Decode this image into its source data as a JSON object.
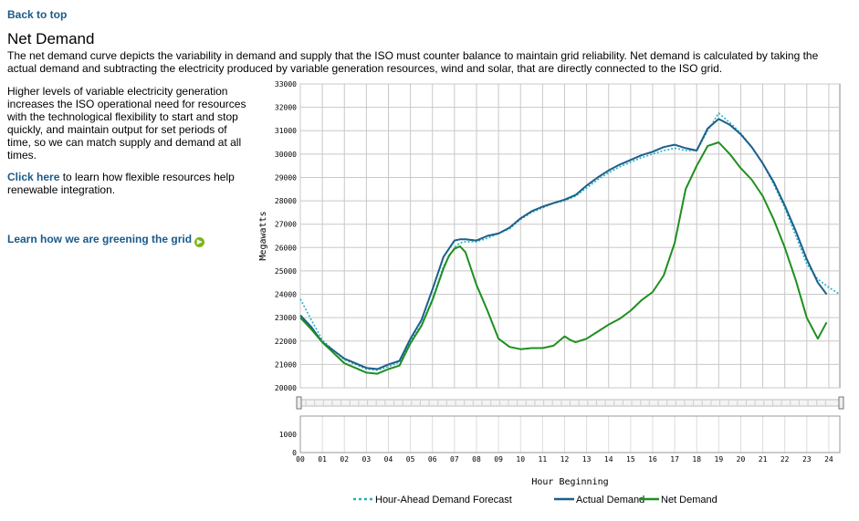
{
  "nav": {
    "back_to_top": "Back to top"
  },
  "page": {
    "title": "Net Demand",
    "intro": "The net demand curve depicts the variability in demand and supply that the ISO must counter balance to maintain grid reliability. Net demand is calculated by taking the actual demand and subtracting the electricity produced by variable generation resources, wind and solar, that are directly connected to the ISO grid.",
    "paragraph": "Higher levels of variable electricity generation increases the ISO operational need for resources with the technological flexibility to start and stop quickly, and maintain output for set periods of time, so we can match supply and demand at all times.",
    "click_here_link": "Click here",
    "click_here_rest": " to learn how flexible resources help renewable integration.",
    "greening_link": "Learn how we are greening the grid",
    "greening_icon": "arrow-right-circle-icon"
  },
  "chart_data": {
    "type": "line",
    "xlabel": "Hour Beginning",
    "ylabel": "Megawatts",
    "xlim": [
      0,
      24.5
    ],
    "ylim": [
      20000,
      33000
    ],
    "x_ticks": [
      "00",
      "01",
      "02",
      "03",
      "04",
      "05",
      "06",
      "07",
      "08",
      "09",
      "10",
      "11",
      "12",
      "13",
      "14",
      "15",
      "16",
      "17",
      "18",
      "19",
      "20",
      "21",
      "22",
      "23",
      "24"
    ],
    "y_ticks": [
      20000,
      21000,
      22000,
      23000,
      24000,
      25000,
      26000,
      27000,
      28000,
      29000,
      30000,
      31000,
      32000,
      33000
    ],
    "navigator_tick": 1000,
    "legend_position": "bottom-center",
    "colors": {
      "forecast": "#2ab0c0",
      "actual": "#1b5f8c",
      "net": "#1f8f1f"
    },
    "series": [
      {
        "name": "Hour-Ahead Demand Forecast",
        "style": "dotted",
        "x": [
          0,
          0.5,
          1,
          1.5,
          2,
          2.5,
          3,
          3.5,
          4,
          4.5,
          5,
          5.5,
          6,
          6.5,
          7,
          7.25,
          7.5,
          8,
          8.5,
          9,
          9.5,
          10,
          10.5,
          11,
          11.5,
          12,
          12.5,
          13,
          13.5,
          14,
          14.5,
          15,
          15.5,
          16,
          16.5,
          17,
          17.5,
          18,
          18.5,
          19,
          19.5,
          20,
          20.5,
          21,
          21.5,
          22,
          22.5,
          23,
          23.5,
          24,
          24.5
        ],
        "values": [
          23800,
          22900,
          22050,
          21600,
          21200,
          21000,
          20800,
          20750,
          20900,
          21100,
          22000,
          22700,
          23800,
          25200,
          26000,
          26200,
          26250,
          26250,
          26400,
          26600,
          26800,
          27200,
          27500,
          27700,
          27900,
          28000,
          28200,
          28550,
          28900,
          29200,
          29450,
          29650,
          29850,
          30000,
          30150,
          30250,
          30150,
          30150,
          31000,
          31750,
          31350,
          30900,
          30300,
          29600,
          28700,
          27700,
          26500,
          25300,
          24650,
          24300,
          24000
        ]
      },
      {
        "name": "Actual Demand",
        "style": "solid",
        "x": [
          0,
          0.5,
          1,
          1.5,
          2,
          2.5,
          3,
          3.5,
          4,
          4.5,
          5,
          5.5,
          6,
          6.5,
          7,
          7.25,
          7.5,
          8,
          8.5,
          9,
          9.5,
          10,
          10.5,
          11,
          11.5,
          12,
          12.5,
          13,
          13.5,
          14,
          14.5,
          15,
          15.5,
          16,
          16.5,
          17,
          17.5,
          18,
          18.5,
          19,
          19.5,
          20,
          20.5,
          21,
          21.5,
          22,
          22.5,
          23,
          23.5,
          23.9
        ],
        "values": [
          23100,
          22600,
          21950,
          21600,
          21250,
          21050,
          20850,
          20800,
          21000,
          21150,
          22100,
          22900,
          24200,
          25600,
          26300,
          26350,
          26350,
          26300,
          26500,
          26600,
          26850,
          27250,
          27550,
          27750,
          27900,
          28050,
          28250,
          28650,
          29000,
          29300,
          29550,
          29750,
          29950,
          30100,
          30300,
          30400,
          30250,
          30150,
          31100,
          31500,
          31250,
          30850,
          30300,
          29600,
          28800,
          27800,
          26700,
          25500,
          24500,
          24000
        ]
      },
      {
        "name": "Net Demand",
        "style": "solid",
        "x": [
          0,
          0.5,
          1,
          1.5,
          2,
          2.5,
          3,
          3.5,
          4,
          4.5,
          5,
          5.5,
          6,
          6.5,
          6.75,
          7,
          7.25,
          7.5,
          8,
          8.5,
          9,
          9.5,
          10,
          10.5,
          11,
          11.5,
          12,
          12.25,
          12.5,
          13,
          13.5,
          14,
          14.5,
          15,
          15.5,
          16,
          16.5,
          17,
          17.5,
          18,
          18.5,
          19,
          19.5,
          20,
          20.5,
          21,
          21.5,
          22,
          22.5,
          23,
          23.5,
          23.9
        ],
        "values": [
          23000,
          22500,
          21950,
          21500,
          21050,
          20850,
          20650,
          20600,
          20800,
          20950,
          21900,
          22650,
          23750,
          25100,
          25650,
          25950,
          26050,
          25800,
          24400,
          23300,
          22100,
          21750,
          21650,
          21700,
          21700,
          21800,
          22200,
          22050,
          21950,
          22100,
          22400,
          22700,
          22950,
          23300,
          23750,
          24100,
          24800,
          26200,
          28500,
          29500,
          30350,
          30500,
          30000,
          29400,
          28900,
          28200,
          27200,
          26000,
          24600,
          23000,
          22100,
          22800
        ]
      }
    ]
  }
}
